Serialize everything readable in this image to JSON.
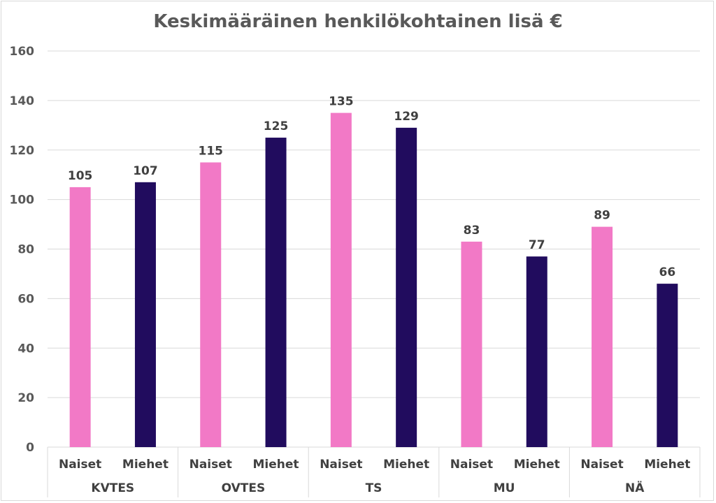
{
  "chart_data": {
    "type": "bar",
    "title": "Keskimääräinen henkilökohtainen lisä €",
    "xlabel": "",
    "ylabel": "",
    "ylim": [
      0,
      160
    ],
    "yticks": [
      "0",
      "20",
      "40",
      "60",
      "80",
      "100",
      "120",
      "140",
      "160"
    ],
    "grid": true,
    "groups": [
      {
        "name": "KVTES",
        "categories": [
          "Naiset",
          "Miehet"
        ],
        "values": [
          105,
          107
        ]
      },
      {
        "name": "OVTES",
        "categories": [
          "Naiset",
          "Miehet"
        ],
        "values": [
          115,
          125
        ]
      },
      {
        "name": "TS",
        "categories": [
          "Naiset",
          "Miehet"
        ],
        "values": [
          135,
          129
        ]
      },
      {
        "name": "MU",
        "categories": [
          "Naiset",
          "Miehet"
        ],
        "values": [
          83,
          77
        ]
      },
      {
        "name": "NÄ",
        "categories": [
          "Naiset",
          "Miehet"
        ],
        "values": [
          89,
          66
        ]
      }
    ],
    "colors": {
      "Naiset": "#f279c6",
      "Miehet": "#210c5e"
    }
  }
}
